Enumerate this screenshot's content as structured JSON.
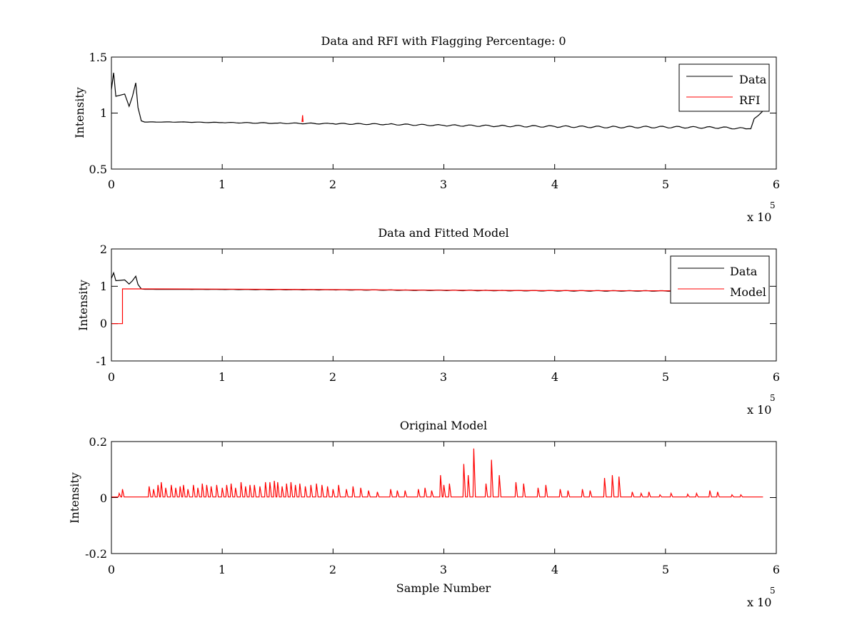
{
  "chart_data": [
    {
      "type": "line",
      "title": "Data and RFI with Flagging Percentage: 0",
      "xlabel": "",
      "ylabel": "Intensity",
      "xlim": [
        0,
        600000
      ],
      "ylim": [
        0.5,
        1.5
      ],
      "x_ticks": [
        0,
        1,
        2,
        3,
        4,
        5,
        6
      ],
      "x_multiplier_label": "x 10",
      "x_multiplier_exponent": "5",
      "y_ticks": [
        "0.5",
        "1",
        "1.5"
      ],
      "grid": false,
      "legend_position": "top-right",
      "series": [
        {
          "name": "Data",
          "color": "#000000",
          "x": [
            0,
            2000,
            4000,
            8000,
            12000,
            16000,
            19000,
            22000,
            24000,
            27000,
            30000,
            40000,
            60000,
            100000,
            150000,
            200000,
            250000,
            300000,
            350000,
            400000,
            450000,
            500000,
            550000,
            575000,
            577000,
            580000,
            584000,
            588000
          ],
          "y": [
            1.21,
            1.36,
            1.15,
            1.16,
            1.17,
            1.06,
            1.15,
            1.27,
            1.05,
            0.93,
            0.92,
            0.92,
            0.92,
            0.915,
            0.91,
            0.905,
            0.9,
            0.89,
            0.885,
            0.88,
            0.875,
            0.875,
            0.87,
            0.86,
            0.86,
            0.95,
            0.98,
            1.02
          ]
        },
        {
          "name": "RFI",
          "color": "#ff0000",
          "x": [
            172000,
            172500,
            173000
          ],
          "y": [
            0.92,
            0.98,
            0.92
          ]
        }
      ]
    },
    {
      "type": "line",
      "title": "Data and Fitted Model",
      "xlabel": "",
      "ylabel": "Intensity",
      "xlim": [
        0,
        600000
      ],
      "ylim": [
        -1,
        2
      ],
      "x_ticks": [
        0,
        1,
        2,
        3,
        4,
        5,
        6
      ],
      "x_multiplier_label": "x 10",
      "x_multiplier_exponent": "5",
      "y_ticks": [
        "-1",
        "0",
        "1",
        "2"
      ],
      "grid": false,
      "legend_position": "top-right",
      "series": [
        {
          "name": "Data",
          "color": "#000000",
          "x": [
            0,
            2000,
            4000,
            8000,
            12000,
            16000,
            19000,
            22000,
            24000,
            27000,
            30000,
            100000,
            200000,
            300000,
            400000,
            500000,
            550000,
            575000,
            588000
          ],
          "y": [
            1.21,
            1.36,
            1.15,
            1.16,
            1.17,
            1.06,
            1.15,
            1.27,
            1.05,
            0.93,
            0.92,
            0.915,
            0.905,
            0.89,
            0.88,
            0.875,
            0.87,
            0.86,
            1.02
          ]
        },
        {
          "name": "Model",
          "color": "#ff0000",
          "x": [
            0,
            10000,
            10000,
            30000,
            100000,
            200000,
            300000,
            400000,
            500000,
            560000
          ],
          "y": [
            0,
            0,
            0.93,
            0.93,
            0.925,
            0.91,
            0.895,
            0.885,
            0.88,
            0.875
          ]
        }
      ]
    },
    {
      "type": "line",
      "title": "Original Model",
      "xlabel": "Sample Number",
      "ylabel": "Intensity",
      "xlim": [
        0,
        600000
      ],
      "ylim": [
        -0.2,
        0.2
      ],
      "x_ticks": [
        0,
        1,
        2,
        3,
        4,
        5,
        6
      ],
      "x_multiplier_label": "x 10",
      "x_multiplier_exponent": "5",
      "y_ticks": [
        "-0.2",
        "0",
        "0.2"
      ],
      "grid": false,
      "series": [
        {
          "color": "#ff0000",
          "baseline": 0.002,
          "xmax": 588000,
          "peaks_x": [
            7000,
            10000,
            34000,
            38000,
            42000,
            45000,
            49000,
            54000,
            58000,
            62000,
            65000,
            69000,
            74000,
            78000,
            82000,
            86000,
            90000,
            95000,
            100000,
            104000,
            108000,
            112000,
            117000,
            121000,
            125000,
            129000,
            134000,
            139000,
            143000,
            147000,
            150000,
            154000,
            158000,
            162000,
            166000,
            170000,
            175000,
            180000,
            185000,
            190000,
            195000,
            200000,
            205000,
            212000,
            218000,
            225000,
            232000,
            240000,
            252000,
            258000,
            265000,
            277000,
            283000,
            289000,
            297000,
            300000,
            305000,
            318000,
            322000,
            327000,
            338000,
            343000,
            350000,
            365000,
            372000,
            385000,
            392000,
            405000,
            412000,
            425000,
            432000,
            445000,
            452000,
            458000,
            470000,
            478000,
            485000,
            495000,
            505000,
            520000,
            528000,
            540000,
            547000,
            560000,
            568000
          ],
          "peaks_y": [
            0.015,
            0.03,
            0.04,
            0.03,
            0.045,
            0.055,
            0.035,
            0.045,
            0.035,
            0.04,
            0.045,
            0.03,
            0.045,
            0.035,
            0.05,
            0.045,
            0.04,
            0.045,
            0.035,
            0.045,
            0.05,
            0.035,
            0.055,
            0.04,
            0.045,
            0.045,
            0.04,
            0.055,
            0.055,
            0.06,
            0.055,
            0.04,
            0.05,
            0.055,
            0.045,
            0.05,
            0.04,
            0.045,
            0.05,
            0.045,
            0.04,
            0.03,
            0.045,
            0.03,
            0.04,
            0.035,
            0.025,
            0.02,
            0.03,
            0.025,
            0.025,
            0.03,
            0.035,
            0.025,
            0.08,
            0.045,
            0.05,
            0.12,
            0.08,
            0.175,
            0.05,
            0.135,
            0.08,
            0.055,
            0.05,
            0.035,
            0.045,
            0.03,
            0.025,
            0.03,
            0.025,
            0.07,
            0.08,
            0.075,
            0.02,
            0.015,
            0.02,
            0.01,
            0.015,
            0.012,
            0.015,
            0.025,
            0.02,
            0.01,
            0.01
          ]
        }
      ]
    }
  ]
}
